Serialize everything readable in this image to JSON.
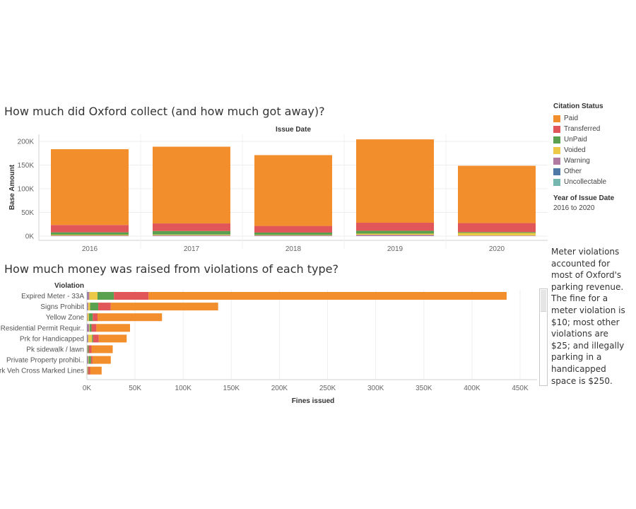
{
  "titles": {
    "chart1": "How much did Oxford collect (and how much got away)?",
    "chart2": "How much money was raised from violations of each type?"
  },
  "legend": {
    "title": "Citation Status",
    "items": [
      {
        "label": "Paid",
        "color": "#F28E2B"
      },
      {
        "label": "Transferred",
        "color": "#E15759"
      },
      {
        "label": "UnPaid",
        "color": "#59A14F"
      },
      {
        "label": "Voided",
        "color": "#EDC948"
      },
      {
        "label": "Warning",
        "color": "#B07AA1"
      },
      {
        "label": "Other",
        "color": "#4E79A7"
      },
      {
        "label": "Uncollectable",
        "color": "#76B7B2"
      }
    ],
    "filter_title": "Year of Issue Date",
    "filter_value": "2016 to 2020"
  },
  "note": "Meter violations accounted for most of Oxford's parking revenue. The fine for a meter violation is $10; most other violations are $25; and illegally parking in a handicapped space is $250.",
  "chart_data": [
    {
      "type": "bar",
      "stacked": true,
      "title": "How much did Oxford collect (and how much got away)?",
      "column_header": "Issue Date",
      "ylabel": "Base Amount",
      "ylim": [
        0,
        200000
      ],
      "yticks": [
        {
          "value": 0,
          "label": "0K"
        },
        {
          "value": 50000,
          "label": "50K"
        },
        {
          "value": 100000,
          "label": "100K"
        },
        {
          "value": 150000,
          "label": "150K"
        },
        {
          "value": 200000,
          "label": "200K"
        }
      ],
      "categories": [
        "2016",
        "2017",
        "2018",
        "2019",
        "2020"
      ],
      "series": [
        {
          "name": "Other",
          "color": "#4E79A7",
          "values": [
            300,
            300,
            300,
            300,
            200
          ]
        },
        {
          "name": "Warning",
          "color": "#B07AA1",
          "values": [
            1200,
            1500,
            1200,
            2500,
            1000
          ]
        },
        {
          "name": "Voided",
          "color": "#EDC948",
          "values": [
            1500,
            1500,
            1000,
            2500,
            5500
          ]
        },
        {
          "name": "UnPaid",
          "color": "#59A14F",
          "values": [
            5000,
            7500,
            5000,
            6000,
            1800
          ]
        },
        {
          "name": "Transferred",
          "color": "#E15759",
          "values": [
            15500,
            16000,
            14000,
            17000,
            19000
          ]
        },
        {
          "name": "Paid",
          "color": "#F28E2B",
          "values": [
            160000,
            162000,
            149500,
            176000,
            121000
          ]
        }
      ]
    },
    {
      "type": "bar",
      "orientation": "horizontal",
      "stacked": true,
      "title": "How much money was raised from violations of each type?",
      "row_header": "Violation",
      "xlabel": "Fines issued",
      "xlim": [
        0,
        450000
      ],
      "xticks": [
        {
          "value": 0,
          "label": "0K"
        },
        {
          "value": 50000,
          "label": "50K"
        },
        {
          "value": 100000,
          "label": "100K"
        },
        {
          "value": 150000,
          "label": "150K"
        },
        {
          "value": 200000,
          "label": "200K"
        },
        {
          "value": 250000,
          "label": "250K"
        },
        {
          "value": 300000,
          "label": "300K"
        },
        {
          "value": 350000,
          "label": "350K"
        },
        {
          "value": 400000,
          "label": "400K"
        },
        {
          "value": 450000,
          "label": "450K"
        }
      ],
      "categories": [
        "Expired Meter - 33A",
        "Signs Prohibit",
        "Yellow Zone",
        "Residential Permit Requir..",
        "Prk for Handicapped",
        "Pk sidewalk / lawn",
        "Private Property prohibi..",
        "Prk Veh Cross Marked Lines"
      ],
      "series": [
        {
          "name": "Other",
          "color": "#4E79A7",
          "values": [
            500,
            300,
            0,
            300,
            300,
            0,
            300,
            0
          ]
        },
        {
          "name": "Warning",
          "color": "#B07AA1",
          "values": [
            2000,
            1000,
            500,
            2000,
            1000,
            500,
            1000,
            300
          ]
        },
        {
          "name": "Voided",
          "color": "#EDC948",
          "values": [
            8500,
            2000,
            1500,
            500,
            4000,
            300,
            500,
            500
          ]
        },
        {
          "name": "UnPaid",
          "color": "#59A14F",
          "values": [
            17000,
            8500,
            4000,
            2000,
            1000,
            1000,
            2500,
            500
          ]
        },
        {
          "name": "Transferred",
          "color": "#E15759",
          "values": [
            36000,
            13000,
            5000,
            5000,
            6000,
            3000,
            1500,
            2000
          ]
        },
        {
          "name": "Paid",
          "color": "#F28E2B",
          "values": [
            372000,
            111500,
            67000,
            35000,
            29000,
            22000,
            19000,
            12000
          ]
        }
      ]
    }
  ]
}
